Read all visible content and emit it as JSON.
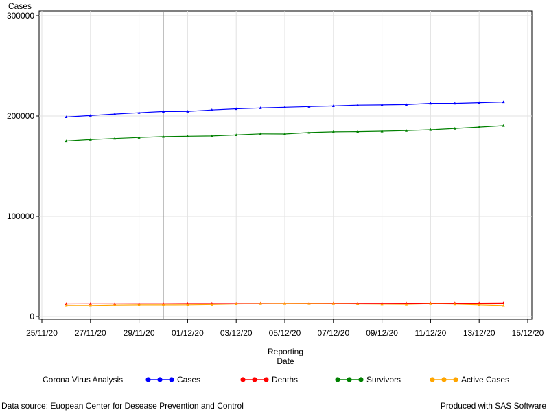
{
  "chart_data": {
    "type": "line",
    "ylabel": "Cases",
    "xlabel_lines": [
      "Reporting",
      "Date"
    ],
    "xlim": [
      "2020-11-25",
      "2020-12-15"
    ],
    "ylim": [
      0,
      300000
    ],
    "x_ticks": [
      "25/11/20",
      "27/11/20",
      "29/11/20",
      "01/12/20",
      "03/12/20",
      "05/12/20",
      "07/12/20",
      "09/12/20",
      "11/12/20",
      "13/12/20",
      "15/12/20"
    ],
    "y_ticks": [
      "0",
      "100000",
      "200000",
      "300000"
    ],
    "y_tick_values": [
      0,
      100000,
      200000,
      300000
    ],
    "grid": true,
    "reference_line_x": "2020-11-30",
    "legend_title": "Corona Virus Analysis",
    "legend_position": "bottom",
    "x": [
      "2020-11-26",
      "2020-11-27",
      "2020-11-28",
      "2020-11-29",
      "2020-11-30",
      "2020-12-01",
      "2020-12-02",
      "2020-12-03",
      "2020-12-04",
      "2020-12-05",
      "2020-12-06",
      "2020-12-07",
      "2020-12-08",
      "2020-12-09",
      "2020-12-10",
      "2020-12-11",
      "2020-12-12",
      "2020-12-13",
      "2020-12-14"
    ],
    "series": [
      {
        "name": "Cases",
        "color": "#0000ff",
        "values": [
          199000,
          200500,
          202000,
          203300,
          204500,
          204600,
          206000,
          207200,
          208000,
          208700,
          209400,
          210000,
          210800,
          211000,
          211400,
          212600,
          212600,
          213300,
          214000
        ]
      },
      {
        "name": "Deaths",
        "color": "#ff0000",
        "values": [
          12700,
          12800,
          12800,
          12900,
          12900,
          13000,
          13000,
          13000,
          13100,
          13100,
          13200,
          13200,
          13200,
          13200,
          13300,
          13300,
          13300,
          13300,
          13400
        ]
      },
      {
        "name": "Survivors",
        "color": "#008000",
        "values": [
          175000,
          176500,
          177600,
          178600,
          179500,
          179900,
          180200,
          181200,
          182300,
          182200,
          183600,
          184300,
          184500,
          184900,
          185500,
          186300,
          187600,
          189000,
          190400
        ]
      },
      {
        "name": "Active Cases",
        "color": "#ffa500",
        "values": [
          11000,
          11000,
          11500,
          11700,
          11700,
          11800,
          12100,
          12700,
          12900,
          13000,
          13000,
          12900,
          12700,
          12500,
          12300,
          12900,
          12600,
          11800,
          11000
        ]
      }
    ]
  },
  "footnotes": {
    "left": "Data source: Euopean Center for Desease Prevention and Control",
    "right": "Produced with SAS Software"
  }
}
